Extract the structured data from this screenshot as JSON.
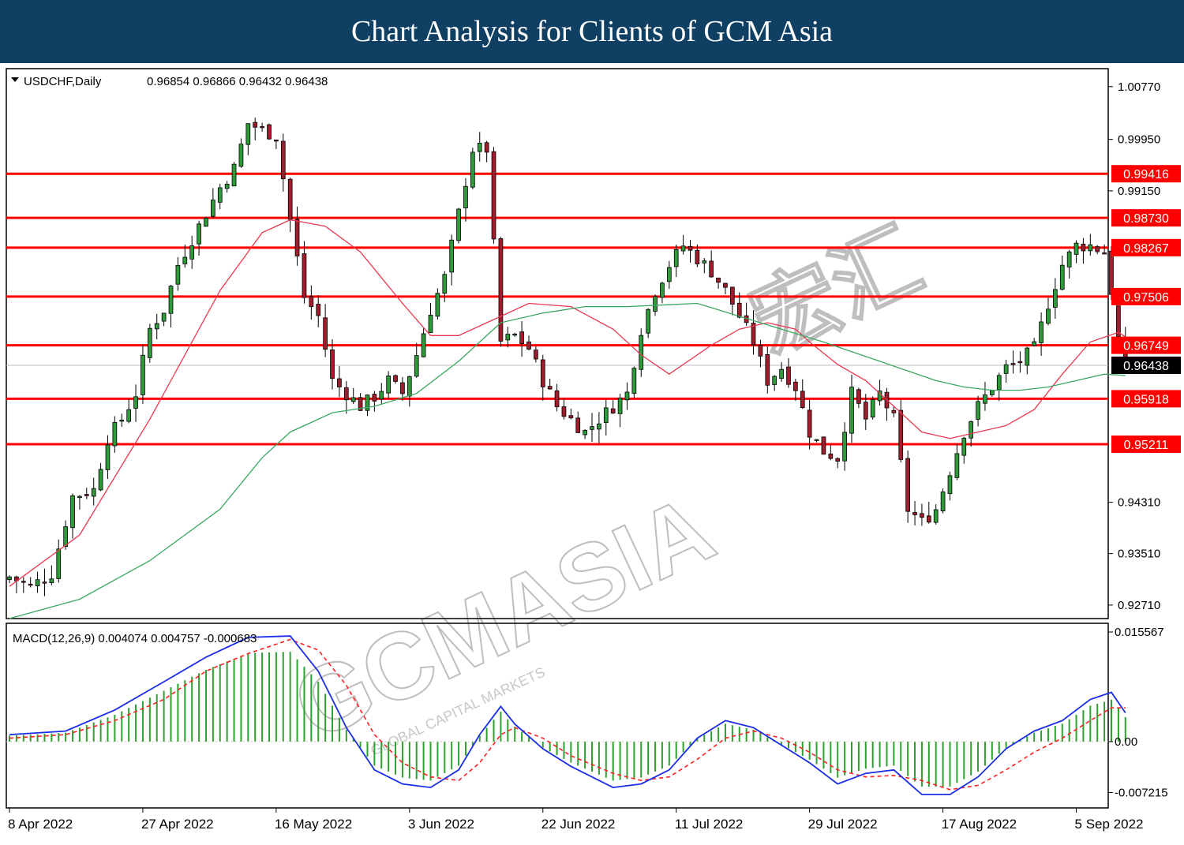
{
  "header": {
    "title": "Chart Analysis for Clients of GCM Asia"
  },
  "watermark": {
    "brand": "GCMASIA",
    "chinese": "宏汇",
    "tagline": "GLOBAL CAPITAL MARKETS"
  },
  "colors": {
    "banner": "#0f3f63",
    "bull": "#2e9a3a",
    "bear": "#a01d2e",
    "level_line": "#ff0000",
    "ma_fast": "#e8384f",
    "ma_slow": "#3aa860",
    "macd_line": "#1a2ee8",
    "signal_line": "#ff2020",
    "histogram": "#2fa030"
  },
  "chart_data": [
    {
      "type": "candlestick",
      "symbol_label": "USDCHF,Daily",
      "ohlc_label": "0.96854 0.96866 0.96432 0.96438",
      "ylim": [
        0.925,
        1.0105
      ],
      "y_ticks": [
        "1.00770",
        "0.99950",
        "0.99150",
        "0.94310",
        "0.93510",
        "0.92710"
      ],
      "x_ticks": [
        {
          "label": "8 Apr 2022",
          "index": 0
        },
        {
          "label": "27 Apr 2022",
          "index": 19
        },
        {
          "label": "16 May 2022",
          "index": 38
        },
        {
          "label": "3 Jun 2022",
          "index": 57
        },
        {
          "label": "22 Jun 2022",
          "index": 76
        },
        {
          "label": "11 Jul 2022",
          "index": 95
        },
        {
          "label": "29 Jul 2022",
          "index": 114
        },
        {
          "label": "17 Aug 2022",
          "index": 133
        },
        {
          "label": "5 Sep 2022",
          "index": 152
        }
      ],
      "levels": [
        "0.99416",
        "0.98730",
        "0.98267",
        "0.97506",
        "0.96749",
        "0.95918",
        "0.95211"
      ],
      "current_price": "0.96438",
      "close_path": [
        [
          0,
          0.9315
        ],
        [
          3,
          0.93
        ],
        [
          6,
          0.932
        ],
        [
          9,
          0.944
        ],
        [
          12,
          0.945
        ],
        [
          14,
          0.953
        ],
        [
          16,
          0.956
        ],
        [
          18,
          0.96
        ],
        [
          20,
          0.97
        ],
        [
          22,
          0.973
        ],
        [
          24,
          0.98
        ],
        [
          26,
          0.984
        ],
        [
          28,
          0.988
        ],
        [
          30,
          0.992
        ],
        [
          32,
          0.995
        ],
        [
          34,
          1.002
        ],
        [
          36,
          1.001
        ],
        [
          38,
          1.0
        ],
        [
          40,
          0.987
        ],
        [
          42,
          0.975
        ],
        [
          44,
          0.972
        ],
        [
          46,
          0.962
        ],
        [
          48,
          0.96
        ],
        [
          50,
          0.958
        ],
        [
          52,
          0.9595
        ],
        [
          54,
          0.962
        ],
        [
          56,
          0.96
        ],
        [
          58,
          0.966
        ],
        [
          60,
          0.973
        ],
        [
          62,
          0.978
        ],
        [
          64,
          0.988
        ],
        [
          66,
          0.998
        ],
        [
          68,
          0.998
        ],
        [
          70,
          0.968
        ],
        [
          72,
          0.969
        ],
        [
          74,
          0.967
        ],
        [
          76,
          0.962
        ],
        [
          78,
          0.958
        ],
        [
          80,
          0.956
        ],
        [
          82,
          0.954
        ],
        [
          84,
          0.956
        ],
        [
          86,
          0.958
        ],
        [
          88,
          0.96
        ],
        [
          90,
          0.97
        ],
        [
          92,
          0.976
        ],
        [
          94,
          0.98
        ],
        [
          96,
          0.983
        ],
        [
          98,
          0.981
        ],
        [
          100,
          0.979
        ],
        [
          102,
          0.976
        ],
        [
          104,
          0.972
        ],
        [
          106,
          0.968
        ],
        [
          108,
          0.962
        ],
        [
          110,
          0.964
        ],
        [
          112,
          0.961
        ],
        [
          114,
          0.954
        ],
        [
          116,
          0.951
        ],
        [
          118,
          0.95
        ],
        [
          120,
          0.96
        ],
        [
          122,
          0.956
        ],
        [
          124,
          0.96
        ],
        [
          126,
          0.956
        ],
        [
          128,
          0.942
        ],
        [
          130,
          0.94
        ],
        [
          132,
          0.942
        ],
        [
          134,
          0.948
        ],
        [
          136,
          0.954
        ],
        [
          138,
          0.958
        ],
        [
          140,
          0.961
        ],
        [
          142,
          0.964
        ],
        [
          144,
          0.965
        ],
        [
          146,
          0.967
        ],
        [
          148,
          0.974
        ],
        [
          150,
          0.98
        ],
        [
          152,
          0.983
        ],
        [
          154,
          0.983
        ],
        [
          156,
          0.982
        ],
        [
          157,
          0.976
        ],
        [
          158,
          0.9685
        ],
        [
          159,
          0.9644
        ]
      ],
      "ma_fast_path": [
        [
          0,
          0.93
        ],
        [
          10,
          0.938
        ],
        [
          20,
          0.956
        ],
        [
          30,
          0.976
        ],
        [
          36,
          0.985
        ],
        [
          40,
          0.987
        ],
        [
          45,
          0.986
        ],
        [
          50,
          0.982
        ],
        [
          56,
          0.974
        ],
        [
          60,
          0.969
        ],
        [
          64,
          0.969
        ],
        [
          70,
          0.972
        ],
        [
          74,
          0.974
        ],
        [
          80,
          0.9735
        ],
        [
          86,
          0.97
        ],
        [
          90,
          0.966
        ],
        [
          94,
          0.963
        ],
        [
          96,
          0.9645
        ],
        [
          100,
          0.9675
        ],
        [
          104,
          0.97
        ],
        [
          108,
          0.971
        ],
        [
          112,
          0.97
        ],
        [
          114,
          0.968
        ],
        [
          118,
          0.9645
        ],
        [
          122,
          0.962
        ],
        [
          126,
          0.958
        ],
        [
          130,
          0.954
        ],
        [
          134,
          0.953
        ],
        [
          138,
          0.954
        ],
        [
          142,
          0.955
        ],
        [
          146,
          0.9575
        ],
        [
          150,
          0.963
        ],
        [
          154,
          0.968
        ],
        [
          158,
          0.9695
        ],
        [
          159,
          0.9688
        ]
      ],
      "ma_slow_path": [
        [
          0,
          0.925
        ],
        [
          10,
          0.928
        ],
        [
          20,
          0.934
        ],
        [
          30,
          0.942
        ],
        [
          36,
          0.95
        ],
        [
          40,
          0.954
        ],
        [
          46,
          0.957
        ],
        [
          52,
          0.958
        ],
        [
          58,
          0.96
        ],
        [
          64,
          0.965
        ],
        [
          70,
          0.971
        ],
        [
          76,
          0.9725
        ],
        [
          82,
          0.9735
        ],
        [
          88,
          0.9735
        ],
        [
          94,
          0.9738
        ],
        [
          98,
          0.974
        ],
        [
          104,
          0.972
        ],
        [
          110,
          0.97
        ],
        [
          116,
          0.968
        ],
        [
          120,
          0.9665
        ],
        [
          124,
          0.965
        ],
        [
          128,
          0.9635
        ],
        [
          132,
          0.962
        ],
        [
          136,
          0.961
        ],
        [
          140,
          0.9605
        ],
        [
          144,
          0.9605
        ],
        [
          148,
          0.961
        ],
        [
          152,
          0.962
        ],
        [
          156,
          0.963
        ],
        [
          159,
          0.9628
        ]
      ]
    },
    {
      "type": "line",
      "label": "MACD(12,26,9) 0.004074 0.004757 -0.000683",
      "ylim": [
        -0.0094,
        0.0168
      ],
      "y_ticks": [
        "0.015567",
        "0.00",
        "-0.007215"
      ],
      "series": [
        {
          "name": "MACD",
          "points": [
            [
              0,
              0.001
            ],
            [
              8,
              0.0015
            ],
            [
              15,
              0.0045
            ],
            [
              22,
              0.0085
            ],
            [
              28,
              0.012
            ],
            [
              34,
              0.0148
            ],
            [
              40,
              0.015
            ],
            [
              44,
              0.01
            ],
            [
              48,
              0.002
            ],
            [
              52,
              -0.004
            ],
            [
              56,
              -0.006
            ],
            [
              60,
              -0.0065
            ],
            [
              64,
              -0.004
            ],
            [
              67,
              0.001
            ],
            [
              70,
              0.005
            ],
            [
              72,
              0.0025
            ],
            [
              76,
              -0.001
            ],
            [
              80,
              -0.0035
            ],
            [
              86,
              -0.0065
            ],
            [
              90,
              -0.006
            ],
            [
              94,
              -0.004
            ],
            [
              98,
              0.0005
            ],
            [
              102,
              0.003
            ],
            [
              106,
              0.002
            ],
            [
              110,
              -0.0005
            ],
            [
              114,
              -0.003
            ],
            [
              118,
              -0.006
            ],
            [
              122,
              -0.0045
            ],
            [
              126,
              -0.004
            ],
            [
              130,
              -0.0075
            ],
            [
              134,
              -0.0075
            ],
            [
              138,
              -0.005
            ],
            [
              142,
              -0.001
            ],
            [
              146,
              0.0015
            ],
            [
              150,
              0.003
            ],
            [
              154,
              0.006
            ],
            [
              157,
              0.007
            ],
            [
              159,
              0.0041
            ]
          ]
        },
        {
          "name": "Signal",
          "points": [
            [
              0,
              0.0005
            ],
            [
              8,
              0.001
            ],
            [
              15,
              0.003
            ],
            [
              22,
              0.006
            ],
            [
              28,
              0.01
            ],
            [
              34,
              0.0125
            ],
            [
              40,
              0.0145
            ],
            [
              44,
              0.013
            ],
            [
              48,
              0.008
            ],
            [
              52,
              0.001
            ],
            [
              56,
              -0.003
            ],
            [
              60,
              -0.005
            ],
            [
              64,
              -0.0055
            ],
            [
              67,
              -0.003
            ],
            [
              70,
              0.001
            ],
            [
              72,
              0.002
            ],
            [
              76,
              0.0005
            ],
            [
              80,
              -0.002
            ],
            [
              86,
              -0.0045
            ],
            [
              90,
              -0.0055
            ],
            [
              94,
              -0.005
            ],
            [
              98,
              -0.0025
            ],
            [
              102,
              0.0005
            ],
            [
              106,
              0.0015
            ],
            [
              110,
              0.0005
            ],
            [
              114,
              -0.0015
            ],
            [
              118,
              -0.004
            ],
            [
              122,
              -0.005
            ],
            [
              126,
              -0.0048
            ],
            [
              130,
              -0.0055
            ],
            [
              134,
              -0.0068
            ],
            [
              138,
              -0.0062
            ],
            [
              142,
              -0.004
            ],
            [
              146,
              -0.0015
            ],
            [
              150,
              0.0005
            ],
            [
              154,
              0.003
            ],
            [
              157,
              0.0048
            ],
            [
              159,
              0.0048
            ]
          ]
        }
      ]
    }
  ]
}
